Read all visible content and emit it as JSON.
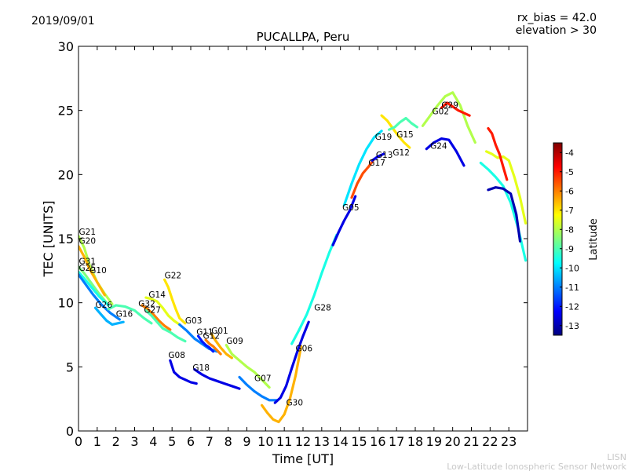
{
  "header": {
    "date": "2019/09/01",
    "params_line1": "rx_bias = 42.0",
    "params_line2": "elevation > 30"
  },
  "footer": {
    "org_short": "LISN",
    "org_full": "Low-Latitude Ionospheric Sensor Network"
  },
  "chart_data": {
    "type": "scatter",
    "title": "PUCALLPA, Peru",
    "xlabel": "Time [UT]",
    "ylabel": "TEC [UNITS]",
    "xlim": [
      0,
      24
    ],
    "ylim": [
      0,
      30
    ],
    "x_ticks": [
      0,
      1,
      2,
      3,
      4,
      5,
      6,
      7,
      8,
      9,
      10,
      11,
      12,
      13,
      14,
      15,
      16,
      17,
      18,
      19,
      20,
      21,
      22,
      23
    ],
    "y_ticks": [
      0,
      5,
      10,
      15,
      20,
      25,
      30
    ],
    "grid": false,
    "colorbar": {
      "label": "Latitude",
      "range": [
        -13.5,
        -3.5
      ],
      "ticks": [
        -4,
        -5,
        -6,
        -7,
        -8,
        -9,
        -10,
        -11,
        -12,
        -13
      ],
      "colormap": [
        "#00007f",
        "#0000ff",
        "#007fff",
        "#00ffff",
        "#7fff7f",
        "#ffff00",
        "#ff7f00",
        "#ff0000",
        "#7f0000"
      ]
    },
    "series": [
      {
        "name": "G21",
        "lat": -8.0,
        "x": [
          0.0,
          0.3,
          0.6,
          1.0,
          1.4,
          1.8
        ],
        "y": [
          15.2,
          14.3,
          12.9,
          11.6,
          10.7,
          9.9
        ]
      },
      {
        "name": "G20",
        "lat": -6.5,
        "x": [
          0.0,
          0.3,
          0.6,
          1.0,
          1.4
        ],
        "y": [
          14.4,
          13.6,
          12.6,
          11.6,
          10.6
        ]
      },
      {
        "name": "G31",
        "lat": -8.5,
        "x": [
          0.0,
          0.3,
          0.7,
          1.1,
          1.5
        ],
        "y": [
          12.8,
          12.3,
          11.5,
          10.7,
          10.0
        ]
      },
      {
        "name": "G25",
        "lat": -9.5,
        "x": [
          0.0,
          0.3,
          0.7,
          1.1,
          1.6
        ],
        "y": [
          12.4,
          11.9,
          11.2,
          10.5,
          9.8
        ]
      },
      {
        "name": "G10",
        "lat": -11.0,
        "x": [
          0.0,
          0.4,
          0.8,
          1.2,
          1.7,
          2.2
        ],
        "y": [
          12.2,
          11.4,
          10.6,
          9.9,
          9.2,
          8.7
        ]
      },
      {
        "name": "G26",
        "lat": -10.5,
        "x": [
          0.9,
          1.2,
          1.5,
          1.8,
          2.1,
          2.4
        ],
        "y": [
          9.6,
          9.1,
          8.6,
          8.3,
          8.4,
          8.5
        ]
      },
      {
        "name": "G16",
        "lat": -9.0,
        "x": [
          1.6,
          2.0,
          2.5,
          3.0,
          3.5,
          3.9
        ],
        "y": [
          9.5,
          9.8,
          9.7,
          9.4,
          8.8,
          8.4
        ]
      },
      {
        "name": "G32",
        "lat": -6.0,
        "x": [
          3.4,
          3.7,
          4.0,
          4.3,
          4.6,
          4.9
        ],
        "y": [
          9.8,
          9.5,
          9.1,
          8.6,
          8.2,
          7.9
        ]
      },
      {
        "name": "G14",
        "lat": -7.5,
        "x": [
          3.6,
          3.9,
          4.2,
          4.5,
          4.8,
          5.1,
          5.4
        ],
        "y": [
          10.4,
          10.3,
          10.1,
          9.6,
          9.0,
          8.6,
          8.3
        ]
      },
      {
        "name": "G22",
        "lat": -7.0,
        "x": [
          4.6,
          4.8,
          5.0,
          5.2,
          5.4,
          5.7
        ],
        "y": [
          11.8,
          11.2,
          10.3,
          9.5,
          8.8,
          8.4
        ]
      },
      {
        "name": "G27",
        "lat": -9.0,
        "x": [
          3.6,
          3.9,
          4.2,
          4.5,
          4.9,
          5.3,
          5.7
        ],
        "y": [
          9.4,
          9.0,
          8.5,
          8.0,
          7.7,
          7.3,
          7.0
        ]
      },
      {
        "name": "G03",
        "lat": -11.0,
        "x": [
          5.4,
          5.8,
          6.2,
          6.6,
          7.0,
          7.4
        ],
        "y": [
          8.3,
          7.8,
          7.2,
          6.8,
          6.4,
          6.2
        ]
      },
      {
        "name": "G08",
        "lat": -12.5,
        "x": [
          4.9,
          5.1,
          5.4,
          5.7,
          6.0,
          6.3
        ],
        "y": [
          5.5,
          4.6,
          4.2,
          4.0,
          3.8,
          3.7
        ]
      },
      {
        "name": "G11",
        "lat": -12.0,
        "x": [
          6.4,
          6.6,
          6.8,
          7.0,
          7.2
        ],
        "y": [
          7.4,
          7.0,
          6.7,
          6.5,
          6.2
        ]
      },
      {
        "name": "G12",
        "lat": -6.0,
        "x": [
          6.8,
          7.0,
          7.2,
          7.4,
          7.6
        ],
        "y": [
          7.1,
          6.8,
          6.6,
          6.3,
          6.0
        ]
      },
      {
        "name": "G01",
        "lat": -6.5,
        "x": [
          7.1,
          7.3,
          7.6,
          7.9,
          8.2
        ],
        "y": [
          7.6,
          7.1,
          6.5,
          6.0,
          5.7
        ]
      },
      {
        "name": "G09",
        "lat": -8.0,
        "x": [
          7.9,
          8.2,
          8.6,
          9.0,
          9.4,
          9.8,
          10.2
        ],
        "y": [
          6.7,
          6.0,
          5.5,
          5.0,
          4.6,
          4.0,
          3.4
        ]
      },
      {
        "name": "G18",
        "lat": -12.5,
        "x": [
          6.2,
          6.6,
          7.0,
          7.4,
          7.8,
          8.2,
          8.6
        ],
        "y": [
          4.8,
          4.4,
          4.1,
          3.9,
          3.7,
          3.5,
          3.3
        ]
      },
      {
        "name": "G07",
        "lat": -11.0,
        "x": [
          8.6,
          9.0,
          9.4,
          9.8,
          10.2,
          10.6
        ],
        "y": [
          4.2,
          3.6,
          3.1,
          2.7,
          2.4,
          2.4
        ]
      },
      {
        "name": "G30",
        "lat": -6.5,
        "x": [
          9.8,
          10.1,
          10.4,
          10.7,
          11.0,
          11.3,
          11.6,
          11.9
        ],
        "y": [
          2.0,
          1.4,
          0.9,
          0.7,
          1.3,
          2.5,
          4.3,
          6.6
        ]
      },
      {
        "name": "G06",
        "lat": -12.5,
        "x": [
          10.5,
          10.8,
          11.1,
          11.4,
          11.7,
          12.0,
          12.3
        ],
        "y": [
          2.2,
          2.6,
          3.5,
          4.9,
          6.2,
          7.4,
          8.5
        ]
      },
      {
        "name": "G28",
        "lat": -9.5,
        "x": [
          11.4,
          11.8,
          12.2,
          12.6,
          13.0,
          13.4,
          13.8
        ],
        "y": [
          6.8,
          7.9,
          9.1,
          10.6,
          12.3,
          13.9,
          15.3
        ]
      },
      {
        "name": "G05",
        "lat": -12.5,
        "x": [
          13.6,
          13.9,
          14.2,
          14.5,
          14.8
        ],
        "y": [
          14.5,
          15.5,
          16.4,
          17.2,
          18.3
        ]
      },
      {
        "name": "G17",
        "lat": -5.5,
        "x": [
          14.6,
          14.9,
          15.2,
          15.5,
          15.8
        ],
        "y": [
          18.2,
          19.3,
          20.1,
          20.6,
          21.2
        ]
      },
      {
        "name": "G19",
        "lat": -10.0,
        "x": [
          14.2,
          14.6,
          15.0,
          15.4,
          15.8,
          16.2
        ],
        "y": [
          17.6,
          19.3,
          20.8,
          22.0,
          22.9,
          23.4
        ]
      },
      {
        "name": "G13",
        "lat": -12.5,
        "x": [
          15.7,
          16.0,
          16.3
        ],
        "y": [
          21.1,
          21.4,
          21.6
        ]
      },
      {
        "name": "G12",
        "lat": -7.0,
        "x": [
          16.2,
          16.5,
          16.8,
          17.1,
          17.4,
          17.7
        ],
        "y": [
          24.6,
          24.2,
          23.6,
          23.0,
          22.5,
          22.1
        ]
      },
      {
        "name": "G15",
        "lat": -9.0,
        "x": [
          16.6,
          16.9,
          17.2,
          17.5,
          17.8,
          18.1
        ],
        "y": [
          23.5,
          23.7,
          24.1,
          24.4,
          24.0,
          23.7
        ]
      },
      {
        "name": "G24",
        "lat": -12.5,
        "x": [
          18.6,
          19.0,
          19.4,
          19.8,
          20.2,
          20.6
        ],
        "y": [
          22.0,
          22.5,
          22.8,
          22.7,
          21.8,
          20.7
        ]
      },
      {
        "name": "G02",
        "lat": -8.0,
        "x": [
          18.4,
          18.8,
          19.2,
          19.6,
          20.0,
          20.4,
          20.8,
          21.2
        ],
        "y": [
          23.8,
          24.6,
          25.4,
          26.1,
          26.4,
          25.4,
          23.8,
          22.5
        ]
      },
      {
        "name": "G29",
        "lat": -5.0,
        "x": [
          19.4,
          19.7,
          20.0,
          20.3,
          20.6,
          20.9
        ],
        "y": [
          25.2,
          25.6,
          25.3,
          25.0,
          24.8,
          24.6
        ]
      },
      {
        "name": "",
        "lat": -9.5,
        "x": [
          21.5,
          21.9,
          22.3,
          22.7,
          23.1,
          23.5,
          23.9
        ],
        "y": [
          20.9,
          20.4,
          19.8,
          19.1,
          17.8,
          15.8,
          13.3
        ]
      },
      {
        "name": "",
        "lat": -7.5,
        "x": [
          21.8,
          22.1,
          22.4,
          22.7,
          23.0,
          23.3,
          23.6,
          23.9
        ],
        "y": [
          21.8,
          21.6,
          21.3,
          21.4,
          21.1,
          19.8,
          18.2,
          16.2
        ]
      },
      {
        "name": "",
        "lat": -5.0,
        "x": [
          21.9,
          22.1,
          22.3,
          22.5,
          22.7,
          22.9
        ],
        "y": [
          23.6,
          23.2,
          22.3,
          21.6,
          20.6,
          19.6
        ]
      },
      {
        "name": "",
        "lat": -13.0,
        "x": [
          21.9,
          22.3,
          22.7,
          23.1,
          23.4,
          23.6
        ],
        "y": [
          18.8,
          19.0,
          18.9,
          18.5,
          16.9,
          14.8
        ]
      }
    ],
    "annotations": [
      {
        "text": "G21",
        "x": 0.02,
        "y": 15.3
      },
      {
        "text": "G20",
        "x": 0.02,
        "y": 14.6
      },
      {
        "text": "G31",
        "x": 0.02,
        "y": 13.0
      },
      {
        "text": "G25",
        "x": 0.02,
        "y": 12.5
      },
      {
        "text": "G10",
        "x": 0.6,
        "y": 12.3
      },
      {
        "text": "G26",
        "x": 0.9,
        "y": 9.6
      },
      {
        "text": "G16",
        "x": 2.0,
        "y": 8.9
      },
      {
        "text": "G32",
        "x": 3.2,
        "y": 9.7
      },
      {
        "text": "G14",
        "x": 3.75,
        "y": 10.4
      },
      {
        "text": "G27",
        "x": 3.5,
        "y": 9.2
      },
      {
        "text": "G22",
        "x": 4.6,
        "y": 11.9
      },
      {
        "text": "G03",
        "x": 5.7,
        "y": 8.4
      },
      {
        "text": "G08",
        "x": 4.8,
        "y": 5.7
      },
      {
        "text": "G11",
        "x": 6.3,
        "y": 7.5
      },
      {
        "text": "G12",
        "x": 6.65,
        "y": 7.2
      },
      {
        "text": "G01",
        "x": 7.1,
        "y": 7.6
      },
      {
        "text": "G09",
        "x": 7.9,
        "y": 6.8
      },
      {
        "text": "G18",
        "x": 6.1,
        "y": 4.7
      },
      {
        "text": "G07",
        "x": 9.4,
        "y": 3.9
      },
      {
        "text": "G30",
        "x": 11.1,
        "y": 2.0
      },
      {
        "text": "G06",
        "x": 11.6,
        "y": 6.2
      },
      {
        "text": "G28",
        "x": 12.6,
        "y": 9.4
      },
      {
        "text": "G05",
        "x": 14.1,
        "y": 17.2
      },
      {
        "text": "G17",
        "x": 15.5,
        "y": 20.7
      },
      {
        "text": "G19",
        "x": 15.85,
        "y": 22.7
      },
      {
        "text": "G13",
        "x": 15.9,
        "y": 21.3
      },
      {
        "text": "G12",
        "x": 16.8,
        "y": 21.5
      },
      {
        "text": "G15",
        "x": 17.0,
        "y": 22.9
      },
      {
        "text": "G24",
        "x": 18.8,
        "y": 22.0
      },
      {
        "text": "G02",
        "x": 18.9,
        "y": 24.7
      },
      {
        "text": "G29",
        "x": 19.4,
        "y": 25.2
      }
    ]
  }
}
